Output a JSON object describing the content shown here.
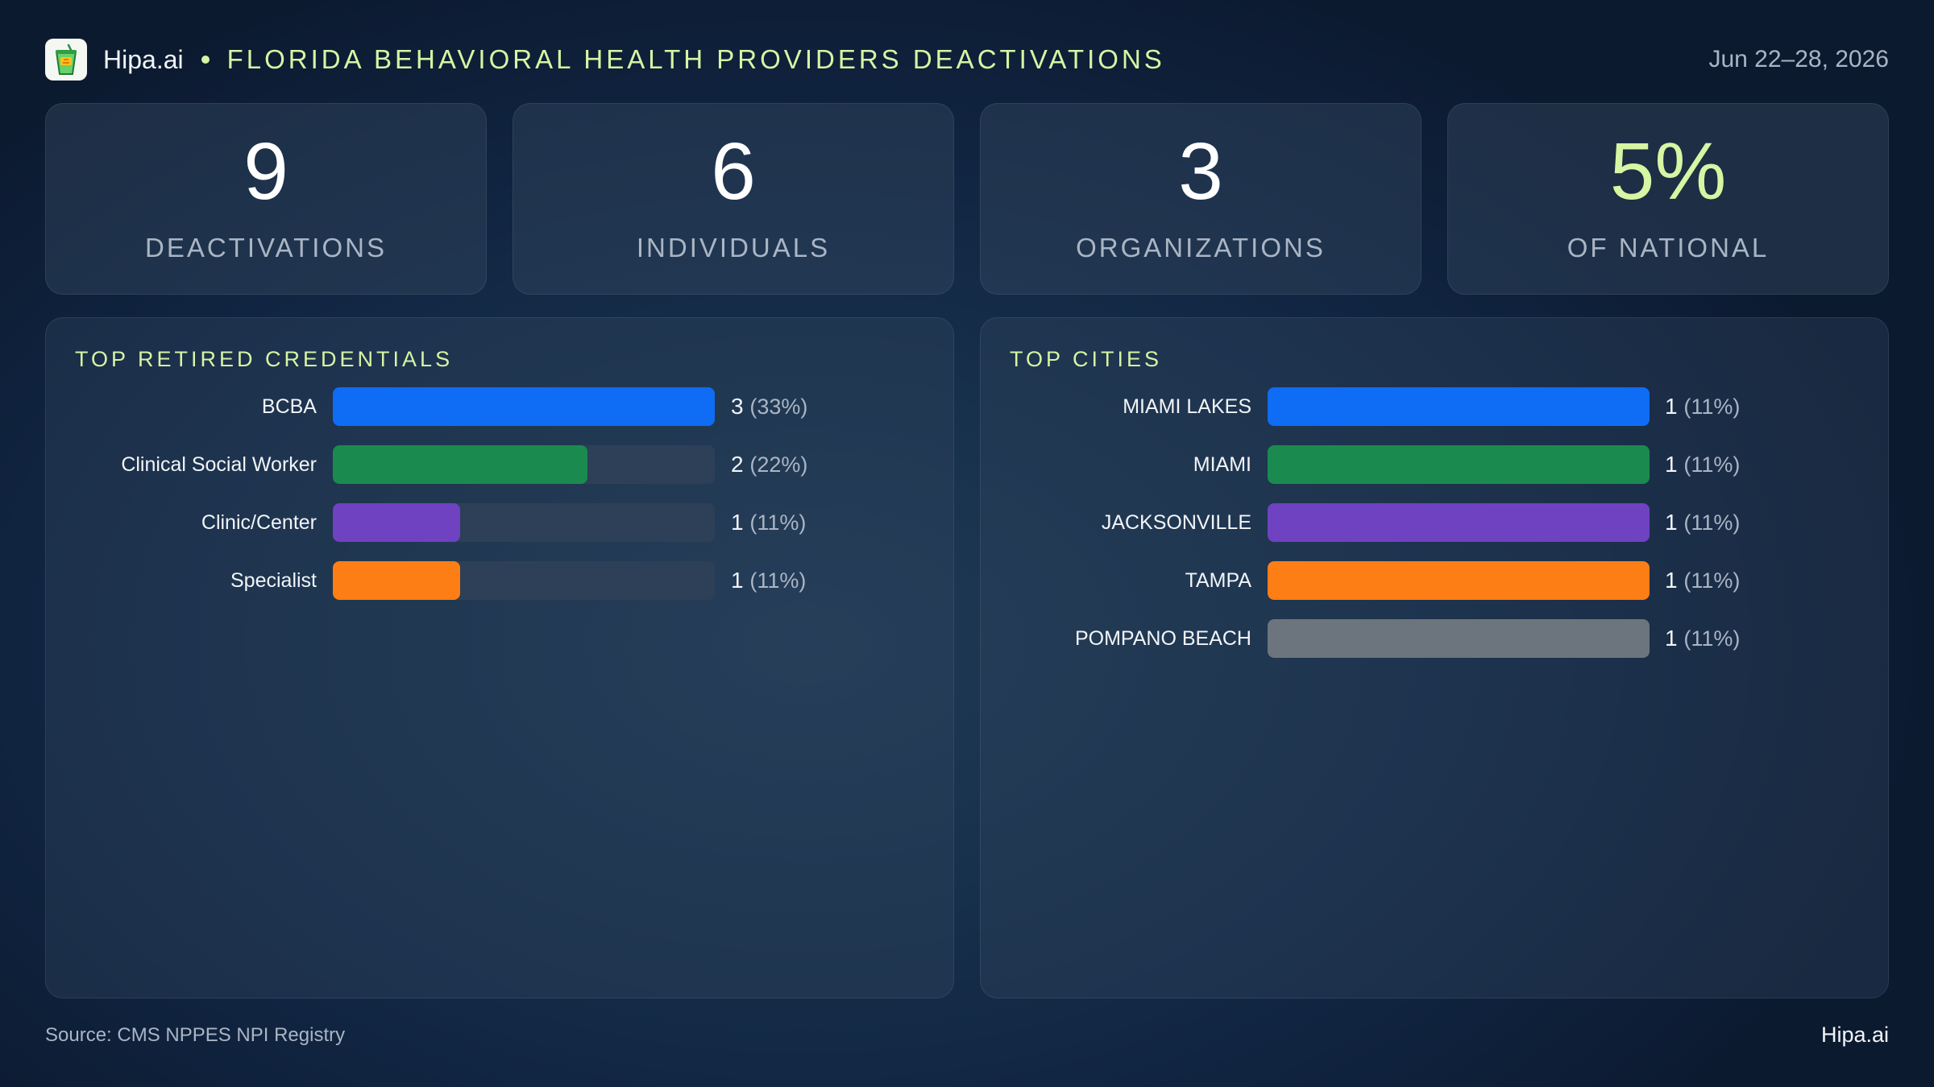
{
  "header": {
    "brand": "Hipa.ai",
    "title": "FLORIDA BEHAVIORAL HEALTH PROVIDERS DEACTIVATIONS",
    "date": "Jun 22–28, 2026",
    "logo_icon": "drink-cup-icon"
  },
  "stats": [
    {
      "value": "9",
      "label": "DEACTIVATIONS"
    },
    {
      "value": "6",
      "label": "INDIVIDUALS"
    },
    {
      "value": "3",
      "label": "ORGANIZATIONS"
    },
    {
      "value": "5%",
      "label": "OF NATIONAL"
    }
  ],
  "colors": {
    "accent": "#d7f5a3",
    "blue": "#0f6cf5",
    "green": "#1b8a4f",
    "purple": "#6f42c1",
    "orange": "#fd7e14",
    "gray": "#6c757d",
    "track": "#2d4057"
  },
  "chart_data": [
    {
      "type": "bar",
      "orientation": "horizontal",
      "title": "TOP RETIRED CREDENTIALS",
      "categories": [
        "BCBA",
        "Clinical Social Worker",
        "Clinic/Center",
        "Specialist"
      ],
      "values": [
        3,
        2,
        1,
        1
      ],
      "value_labels": [
        "3",
        "2",
        "1",
        "1"
      ],
      "percent_labels": [
        "(33%)",
        "(22%)",
        "(11%)",
        "(11%)"
      ],
      "colors": [
        "#0f6cf5",
        "#1b8a4f",
        "#6f42c1",
        "#fd7e14"
      ],
      "xlim": [
        0,
        3
      ]
    },
    {
      "type": "bar",
      "orientation": "horizontal",
      "title": "TOP CITIES",
      "categories": [
        "MIAMI LAKES",
        "MIAMI",
        "JACKSONVILLE",
        "TAMPA",
        "POMPANO BEACH"
      ],
      "values": [
        1,
        1,
        1,
        1,
        1
      ],
      "value_labels": [
        "1",
        "1",
        "1",
        "1",
        "1"
      ],
      "percent_labels": [
        "(11%)",
        "(11%)",
        "(11%)",
        "(11%)",
        "(11%)"
      ],
      "colors": [
        "#0f6cf5",
        "#1b8a4f",
        "#6f42c1",
        "#fd7e14",
        "#6c757d"
      ],
      "xlim": [
        0,
        1
      ]
    }
  ],
  "footer": {
    "source": "Source: CMS NPPES NPI Registry",
    "brand": "Hipa.ai"
  }
}
